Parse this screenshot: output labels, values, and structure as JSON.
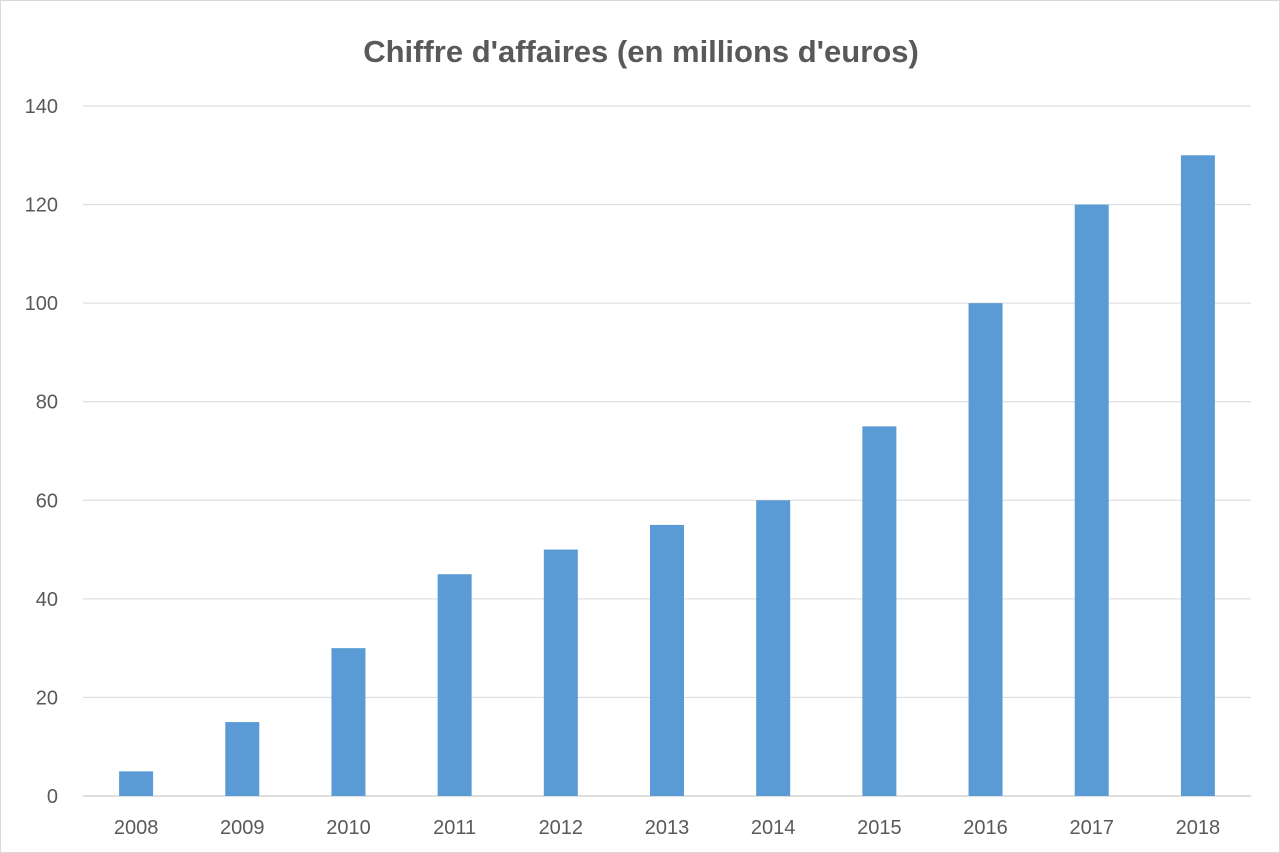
{
  "chart_data": {
    "type": "bar",
    "title": "Chiffre d'affaires (en millions d'euros)",
    "xlabel": "",
    "ylabel": "",
    "categories": [
      "2008",
      "2009",
      "2010",
      "2011",
      "2012",
      "2013",
      "2014",
      "2015",
      "2016",
      "2017",
      "2018"
    ],
    "values": [
      5,
      15,
      30,
      45,
      50,
      55,
      60,
      75,
      100,
      120,
      130
    ],
    "ylim": [
      0,
      140
    ],
    "yticks": [
      "0",
      "20",
      "40",
      "60",
      "80",
      "100",
      "120",
      "140"
    ],
    "grid": true,
    "legend": "none",
    "bar_color": "#5b9bd5"
  }
}
